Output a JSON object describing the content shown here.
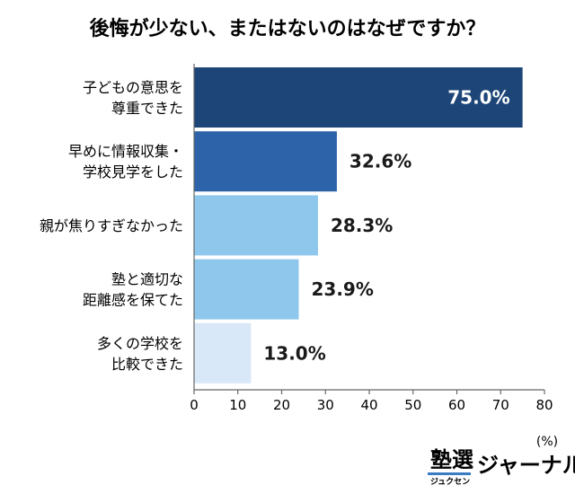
{
  "chart_data": {
    "type": "bar",
    "orientation": "horizontal",
    "title": "後悔が少ない、またはないのはなぜですか？",
    "categories": [
      [
        "子どもの意思を",
        "尊重できた"
      ],
      [
        "早めに情報収集・",
        "学校見学をした"
      ],
      [
        "親が焦りすぎなかった"
      ],
      [
        "塾と適切な",
        "距離感を保てた"
      ],
      [
        "多くの学校を",
        "比較できた"
      ]
    ],
    "values": [
      75.0,
      32.6,
      28.3,
      23.9,
      13.0
    ],
    "value_labels": [
      "75.0%",
      "32.6%",
      "28.3%",
      "23.9%",
      "13.0%"
    ],
    "bar_colors": [
      "#1d4577",
      "#2d63a8",
      "#8fc7ec",
      "#8fc7ec",
      "#d9e8f8"
    ],
    "xlim": [
      0,
      80
    ],
    "xticks": [
      0,
      10,
      20,
      30,
      40,
      50,
      60,
      70,
      80
    ],
    "unit_label": "(%)",
    "grid": false,
    "legend": "none"
  },
  "branding": {
    "logo_kanji": "塾選",
    "logo_kana": "ジュクセン",
    "logo_text": "ジャーナル"
  }
}
